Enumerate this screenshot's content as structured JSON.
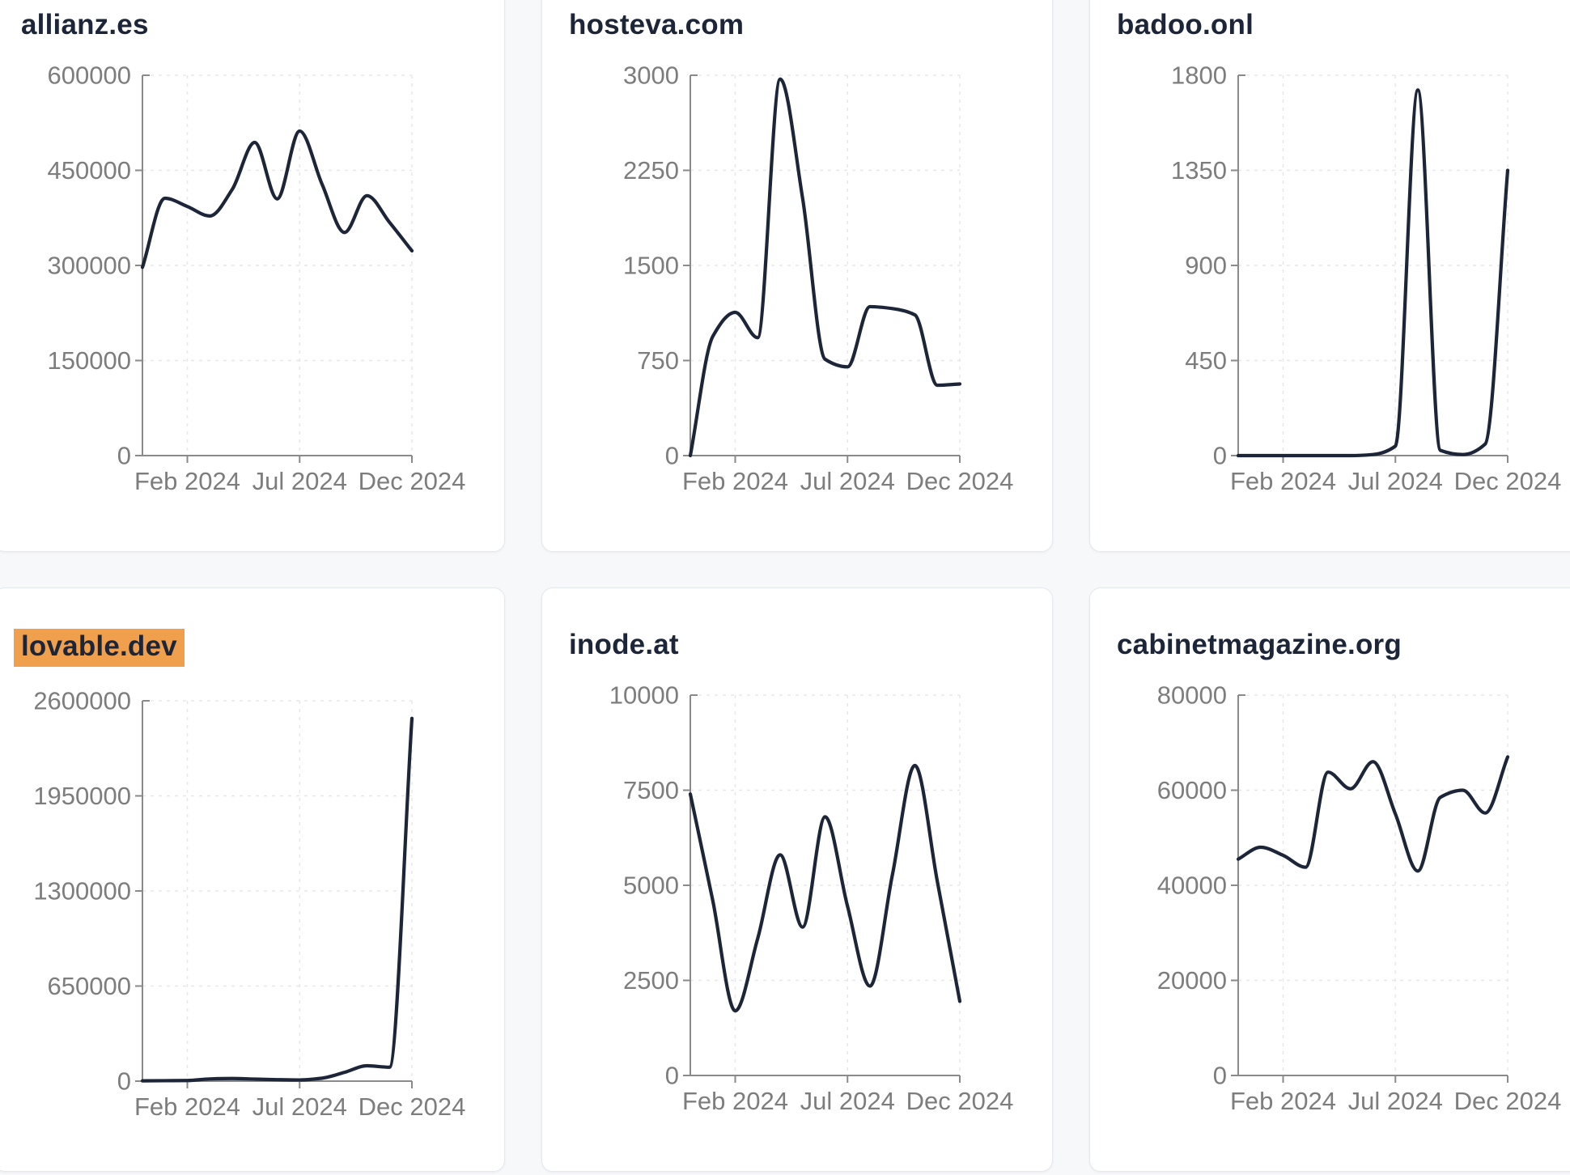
{
  "colors": {
    "line": "#1d2538",
    "title": "#1d2538",
    "highlight_bg": "#f09f4d",
    "axis": "#8a8a8a",
    "grid": "#e8e8e8",
    "tick_label": "#7d7d7d",
    "card_bg": "#ffffff",
    "card_border": "#e4e9f0",
    "page_bg": "#f7f8fa"
  },
  "chart_data": [
    {
      "type": "line",
      "title": "allianz.es",
      "title_highlighted": false,
      "x": [
        "Dec 2023",
        "Jan 2024",
        "Feb 2024",
        "Mar 2024",
        "Apr 2024",
        "May 2024",
        "Jun 2024",
        "Jul 2024",
        "Aug 2024",
        "Sep 2024",
        "Oct 2024",
        "Nov 2024",
        "Dec 2024"
      ],
      "values": [
        297000,
        406000,
        393000,
        378000,
        420000,
        494000,
        405000,
        512000,
        428000,
        352000,
        410000,
        368000,
        323000
      ],
      "ylim": [
        0,
        600000
      ],
      "y_ticks": [
        0,
        150000,
        300000,
        450000,
        600000
      ],
      "x_tick_labels": [
        "Feb 2024",
        "Jul 2024",
        "Dec 2024"
      ],
      "x_tick_indices": [
        2,
        7,
        12
      ],
      "grid": true,
      "legend": "none"
    },
    {
      "type": "line",
      "title": "hosteva.com",
      "title_highlighted": false,
      "x": [
        "Dec 2023",
        "Jan 2024",
        "Feb 2024",
        "Mar 2024",
        "Apr 2024",
        "May 2024",
        "Jun 2024",
        "Jul 2024",
        "Aug 2024",
        "Sep 2024",
        "Oct 2024",
        "Nov 2024",
        "Dec 2024"
      ],
      "values": [
        0,
        940,
        1130,
        930,
        2970,
        2030,
        760,
        700,
        1175,
        1160,
        1110,
        555,
        565
      ],
      "ylim": [
        0,
        3000
      ],
      "y_ticks": [
        0,
        750,
        1500,
        2250,
        3000
      ],
      "x_tick_labels": [
        "Feb 2024",
        "Jul 2024",
        "Dec 2024"
      ],
      "x_tick_indices": [
        2,
        7,
        12
      ],
      "grid": true,
      "legend": "none"
    },
    {
      "type": "line",
      "title": "badoo.onl",
      "title_highlighted": false,
      "x": [
        "Dec 2023",
        "Jan 2024",
        "Feb 2024",
        "Mar 2024",
        "Apr 2024",
        "May 2024",
        "Jun 2024",
        "Jul 2024",
        "Aug 2024",
        "Sep 2024",
        "Oct 2024",
        "Nov 2024",
        "Dec 2024"
      ],
      "values": [
        0,
        0,
        0,
        0,
        0,
        0,
        5,
        45,
        1730,
        25,
        5,
        55,
        1350
      ],
      "ylim": [
        0,
        1800
      ],
      "y_ticks": [
        0,
        450,
        900,
        1350,
        1800
      ],
      "x_tick_labels": [
        "Feb 2024",
        "Jul 2024",
        "Dec 2024"
      ],
      "x_tick_indices": [
        2,
        7,
        12
      ],
      "grid": true,
      "legend": "none"
    },
    {
      "type": "line",
      "title": "lovable.dev",
      "title_highlighted": true,
      "x": [
        "Dec 2023",
        "Jan 2024",
        "Feb 2024",
        "Mar 2024",
        "Apr 2024",
        "May 2024",
        "Jun 2024",
        "Jul 2024",
        "Aug 2024",
        "Sep 2024",
        "Oct 2024",
        "Nov 2024",
        "Dec 2024"
      ],
      "values": [
        2000,
        3000,
        4000,
        15000,
        18000,
        14000,
        10000,
        8000,
        20000,
        60000,
        105000,
        95000,
        2480000
      ],
      "ylim": [
        0,
        2600000
      ],
      "y_ticks": [
        0,
        650000,
        1300000,
        1950000,
        2600000
      ],
      "x_tick_labels": [
        "Feb 2024",
        "Jul 2024",
        "Dec 2024"
      ],
      "x_tick_indices": [
        2,
        7,
        12
      ],
      "grid": true,
      "legend": "none"
    },
    {
      "type": "line",
      "title": "inode.at",
      "title_highlighted": false,
      "x": [
        "Dec 2023",
        "Jan 2024",
        "Feb 2024",
        "Mar 2024",
        "Apr 2024",
        "May 2024",
        "Jun 2024",
        "Jul 2024",
        "Aug 2024",
        "Sep 2024",
        "Oct 2024",
        "Nov 2024",
        "Dec 2024"
      ],
      "values": [
        7400,
        4600,
        1700,
        3600,
        5800,
        3900,
        6800,
        4450,
        2350,
        5280,
        8150,
        5100,
        1950
      ],
      "ylim": [
        0,
        10000
      ],
      "y_ticks": [
        0,
        2500,
        5000,
        7500,
        10000
      ],
      "x_tick_labels": [
        "Feb 2024",
        "Jul 2024",
        "Dec 2024"
      ],
      "x_tick_indices": [
        2,
        7,
        12
      ],
      "grid": true,
      "legend": "none"
    },
    {
      "type": "line",
      "title": "cabinetmagazine.org",
      "title_highlighted": false,
      "x": [
        "Dec 2023",
        "Jan 2024",
        "Feb 2024",
        "Mar 2024",
        "Apr 2024",
        "May 2024",
        "Jun 2024",
        "Jul 2024",
        "Aug 2024",
        "Sep 2024",
        "Oct 2024",
        "Nov 2024",
        "Dec 2024"
      ],
      "values": [
        45500,
        48000,
        46300,
        43800,
        63800,
        60300,
        66000,
        55000,
        43000,
        58500,
        60000,
        55200,
        67000
      ],
      "ylim": [
        0,
        80000
      ],
      "y_ticks": [
        0,
        20000,
        40000,
        60000,
        80000
      ],
      "x_tick_labels": [
        "Feb 2024",
        "Jul 2024",
        "Dec 2024"
      ],
      "x_tick_indices": [
        2,
        7,
        12
      ],
      "grid": true,
      "legend": "none"
    }
  ]
}
